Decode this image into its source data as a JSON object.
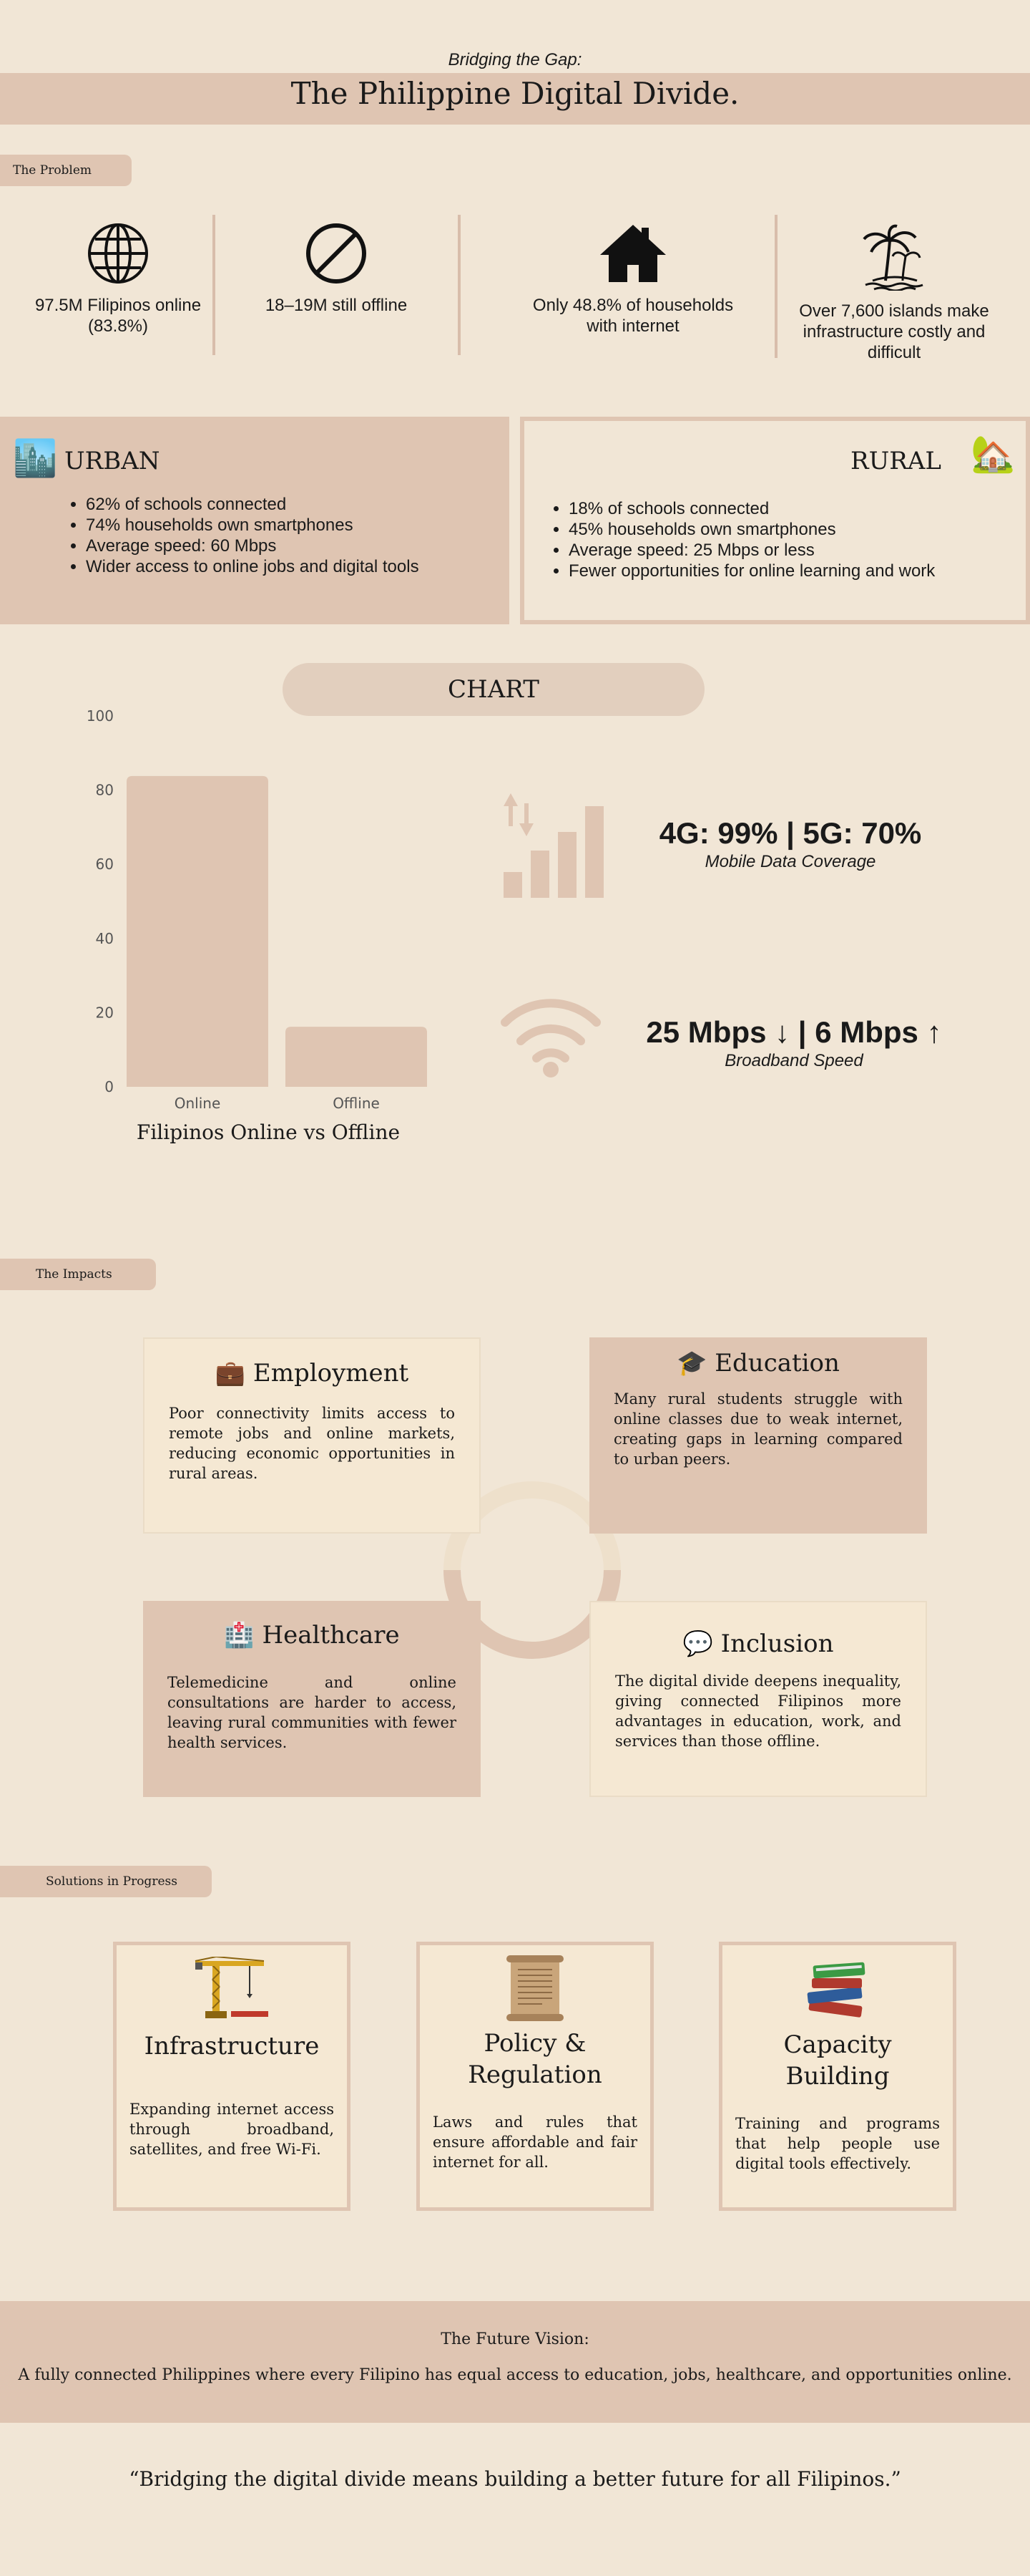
{
  "header": {
    "subtitle": "Bridging the Gap:",
    "title": "The Philippine Digital Divide."
  },
  "problem": {
    "section_label": "The Problem",
    "items": [
      {
        "icon": "globe-icon",
        "text": "97.5M Filipinos online (83.8%)"
      },
      {
        "icon": "prohibited-icon",
        "text": "18–19M still offline"
      },
      {
        "icon": "house-icon",
        "text": "Only 48.8% of households with internet"
      },
      {
        "icon": "island-icon",
        "text": "Over 7,600 islands make infrastructure costly and difficult"
      }
    ]
  },
  "urban": {
    "title": "URBAN",
    "icon": "city-icon",
    "items": [
      "62% of schools connected",
      "74% households own smartphones",
      "Average speed: 60 Mbps",
      "Wider access to online jobs and digital tools"
    ]
  },
  "rural": {
    "title": "RURAL",
    "icon": "countryside-icon",
    "items": [
      "18% of schools connected",
      "45% households own smartphones",
      "Average speed: 25 Mbps or less",
      "Fewer opportunities for online learning and work"
    ]
  },
  "chart_section": {
    "label": "CHART",
    "caption": "Filipinos Online vs Offline"
  },
  "chart_data": {
    "type": "bar",
    "categories": [
      "Online",
      "Offline"
    ],
    "values": [
      83.8,
      16.2
    ],
    "title": "Filipinos Online vs Offline",
    "xlabel": "",
    "ylabel": "",
    "ylim": [
      0,
      100
    ],
    "yticks": [
      "0",
      "20",
      "40",
      "60",
      "80",
      "100"
    ],
    "bar_color": "#dfc5b2",
    "grid": false
  },
  "stats": {
    "mobile": {
      "icon": "signal-bars-icon",
      "headline": "4G: 99% | 5G: 70%",
      "label": "Mobile Data Coverage"
    },
    "broadband": {
      "icon": "wifi-icon",
      "headline": "25 Mbps ↓ | 6 Mbps ↑",
      "label": "Broadband Speed"
    }
  },
  "impacts": {
    "section_label": "The Impacts",
    "cards": [
      {
        "title": "Employment",
        "emoji": "💼",
        "text": "Poor connectivity limits access to remote jobs and online markets, reducing economic opportunities in rural areas."
      },
      {
        "title": "Education",
        "emoji": "🎓",
        "text": "Many rural students struggle with online classes due to weak internet, creating gaps in learning compared to urban peers."
      },
      {
        "title": "Healthcare",
        "emoji": "🏥",
        "text": "Telemedicine and online consultations are harder to access, leaving rural communities with fewer health services."
      },
      {
        "title": "Inclusion",
        "emoji": "💬",
        "text": "The digital divide deepens inequality, giving connected Filipinos more advantages in education, work, and services than those offline."
      }
    ]
  },
  "solutions": {
    "section_label": "Solutions in Progress",
    "cards": [
      {
        "title": "Infrastructure",
        "icon": "crane-icon",
        "text": "Expanding internet access through broadband, satellites, and free Wi-Fi."
      },
      {
        "title": "Policy & Regulation",
        "icon": "scroll-icon",
        "text": "Laws and rules that ensure affordable and fair internet for all."
      },
      {
        "title": "Capacity Building",
        "icon": "books-icon",
        "text": "Training and programs that help people use digital tools effectively."
      }
    ]
  },
  "future": {
    "title": "The Future Vision:",
    "text": "A fully connected Philippines where every Filipino has equal access to education, jobs, healthcare, and opportunities online."
  },
  "quote": "“Bridging the digital divide means building a better future for all Filipinos.”",
  "colors": {
    "background": "#f1e6d6",
    "accent": "#dfc5b2",
    "card_light": "#f5e8d3",
    "text": "#1a1a1a"
  }
}
